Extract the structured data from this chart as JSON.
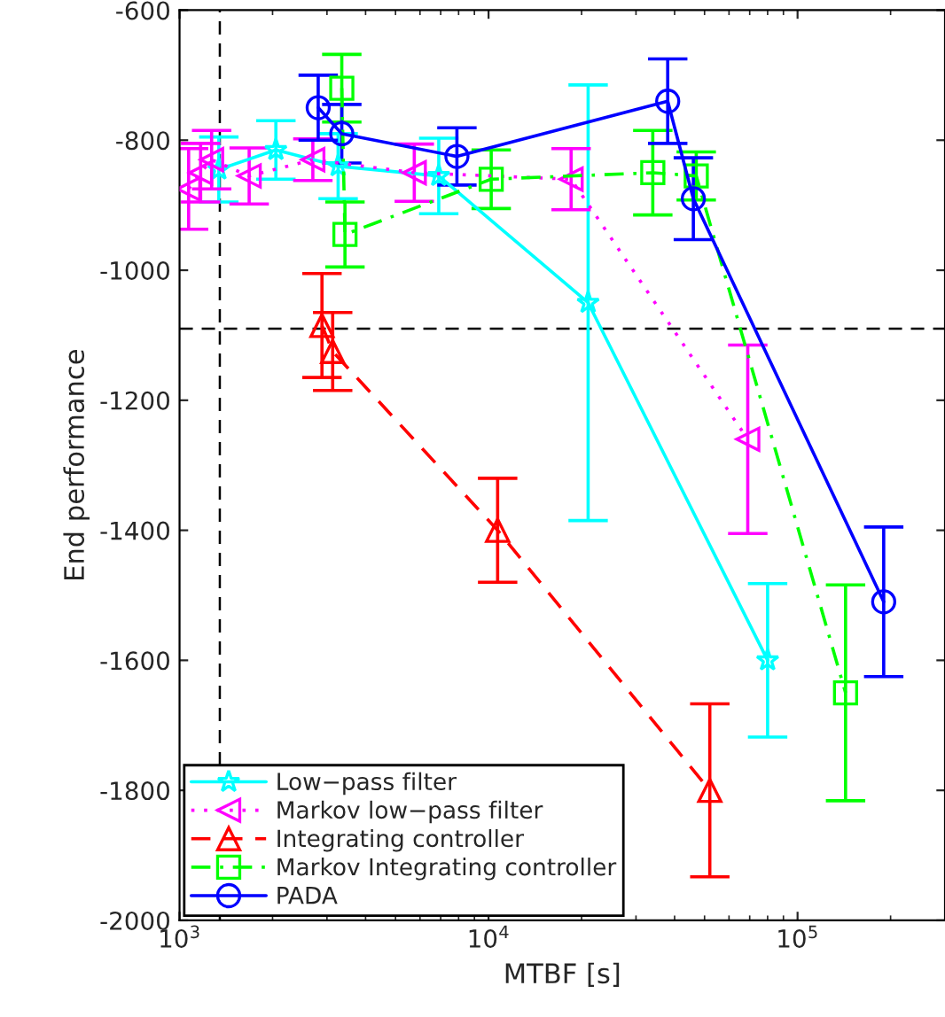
{
  "chart_data": {
    "type": "line",
    "xlabel": "MTBF [s]",
    "ylabel": "End performance",
    "log": "x",
    "xlim": [
      1000,
      300000
    ],
    "xticks": [
      {
        "value": 1000,
        "label": "10$^{3}$"
      },
      {
        "value": 10000,
        "label": "10$^{4}$"
      },
      {
        "value": 100000,
        "label": "10$^{5}$"
      }
    ],
    "ylim": [
      -2000,
      -600
    ],
    "yticks": [
      -2000,
      -1800,
      -1600,
      -1400,
      -1200,
      -1000,
      -800,
      -600
    ],
    "grid": false,
    "legend": "bottom left",
    "ref_lines": [
      {
        "axis": "x",
        "value": 1350,
        "color": "#000000",
        "line_style": "dashed"
      },
      {
        "axis": "y",
        "value": -1090,
        "color": "#000000",
        "line_style": "dashed"
      }
    ],
    "series": [
      {
        "name": "Low−pass filter",
        "color": "#00ffff",
        "marker": "star",
        "line_style": "solid",
        "x": [
          1340,
          2050,
          3260,
          6900,
          21000,
          80000
        ],
        "values": [
          -845,
          -815,
          -840,
          -855,
          -1050,
          -1600
        ],
        "errors": [
          50,
          45,
          50,
          58,
          335,
          118
        ]
      },
      {
        "name": "Markov low−pass filter",
        "color": "#ff00ff",
        "marker": "triangle_left",
        "line_style": "dotted",
        "x": [
          1070,
          1170,
          1270,
          1680,
          2700,
          5750,
          18500,
          69000
        ],
        "values": [
          -875,
          -850,
          -830,
          -855,
          -830,
          -850,
          -860,
          -1260
        ],
        "errors": [
          62,
          45,
          45,
          43,
          32,
          44,
          47,
          145
        ]
      },
      {
        "name": "Integrating controller",
        "color": "#ff0000",
        "marker": "triangle",
        "line_style": "dashed",
        "x": [
          2890,
          3130,
          10700,
          52000
        ],
        "values": [
          -1085,
          -1125,
          -1400,
          -1800
        ],
        "errors": [
          80,
          60,
          80,
          133
        ]
      },
      {
        "name": "Markov Integrating controller",
        "color": "#00ff00",
        "marker": "square",
        "line_style": "dashdot",
        "x": [
          3350,
          3430,
          10200,
          34000,
          47000,
          143000
        ],
        "values": [
          -720,
          -945,
          -860,
          -850,
          -855,
          -1650
        ],
        "errors": [
          52,
          50,
          45,
          65,
          37,
          166
        ]
      },
      {
        "name": "PADA",
        "color": "#0000ff",
        "marker": "circle",
        "line_style": "solid",
        "x": [
          2810,
          3350,
          7900,
          38000,
          46000,
          190000
        ],
        "values": [
          -750,
          -790,
          -825,
          -740,
          -890,
          -1510
        ],
        "errors": [
          50,
          45,
          44,
          65,
          63,
          115
        ]
      }
    ]
  }
}
